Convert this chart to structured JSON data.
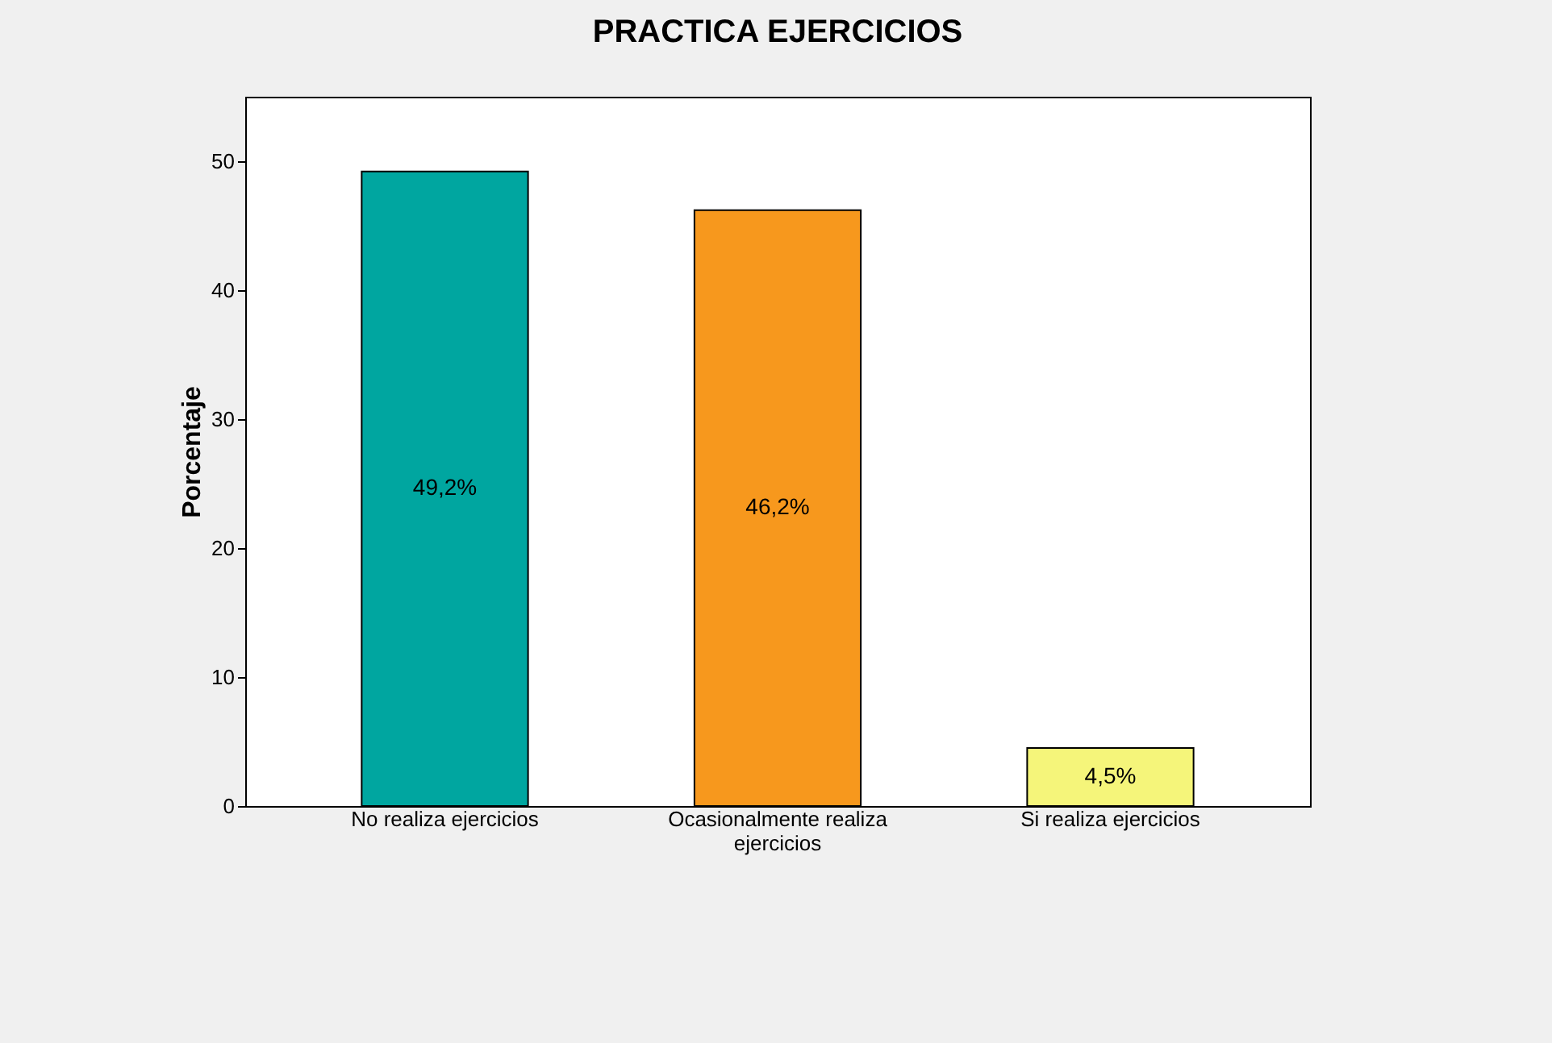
{
  "chart_data": {
    "type": "bar",
    "title": "PRACTICA EJERCICIOS",
    "ylabel": "Porcentaje",
    "categories": [
      "No realiza ejercicios",
      "Ocasionalmente realiza ejercicios",
      "Si realiza ejercicios"
    ],
    "values": [
      49.2,
      46.2,
      4.5
    ],
    "colors": [
      "#00a6a0",
      "#f7981d",
      "#f5f57a"
    ],
    "value_labels": [
      "49,2%",
      "46,2%",
      "4,5%"
    ],
    "ylim": [
      0,
      55
    ],
    "yticks": [
      0,
      10,
      20,
      30,
      40,
      50
    ]
  }
}
